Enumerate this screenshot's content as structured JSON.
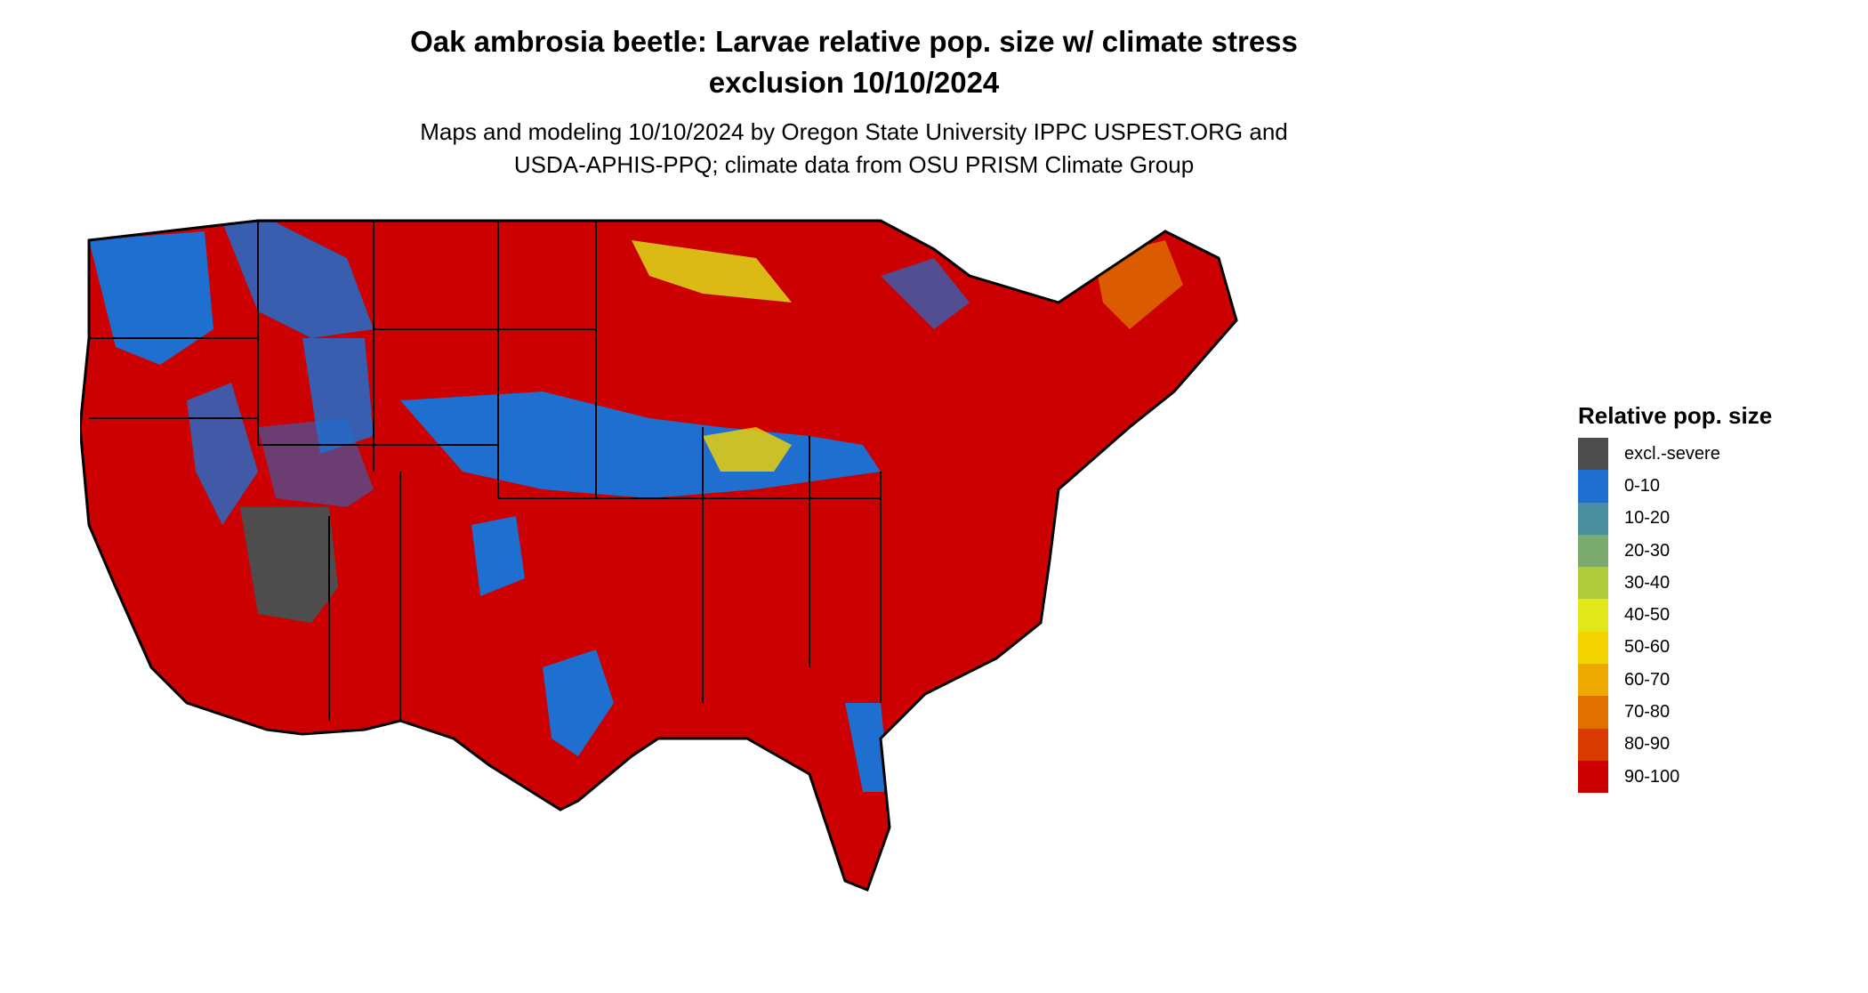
{
  "header": {
    "title": "Oak ambrosia beetle: Larvae relative pop. size w/ climate stress",
    "title_line2": "exclusion 10/10/2024",
    "subtitle_line1": "Maps and modeling 10/10/2024 by Oregon State University IPPC USPEST.ORG and",
    "subtitle_line2": "USDA-APHIS-PPQ; climate data from OSU PRISM Climate Group"
  },
  "legend": {
    "title": "Relative pop. size",
    "items": [
      {
        "label": "excl.-severe",
        "color": "#4d4d4d"
      },
      {
        "label": "0-10",
        "color": "#1e6fcf"
      },
      {
        "label": "10-20",
        "color": "#4a8fa0"
      },
      {
        "label": "20-30",
        "color": "#7aaa6e"
      },
      {
        "label": "30-40",
        "color": "#b0cc3c"
      },
      {
        "label": "40-50",
        "color": "#e0e81a"
      },
      {
        "label": "50-60",
        "color": "#f4d400"
      },
      {
        "label": "60-70",
        "color": "#eeaa00"
      },
      {
        "label": "70-80",
        "color": "#e07000"
      },
      {
        "label": "80-90",
        "color": "#d83a00"
      },
      {
        "label": "90-100",
        "color": "#cc0000"
      }
    ]
  }
}
